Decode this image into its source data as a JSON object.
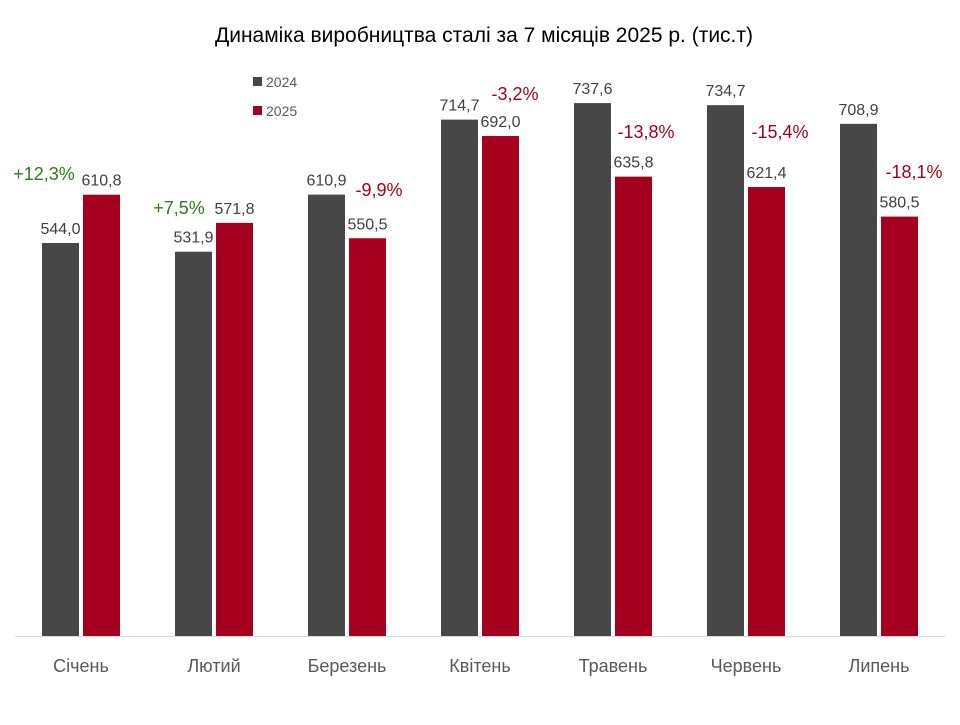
{
  "chart_data": {
    "type": "bar",
    "title": "Динаміка виробництва сталі за 7 місяців 2025 р. (тис.т)",
    "xlabel": "",
    "ylabel": "",
    "ylim": [
      0,
      800
    ],
    "grid": false,
    "legend": "top-left",
    "categories": [
      "Січень",
      "Лютий",
      "Березень",
      "Квітень",
      "Травень",
      "Червень",
      "Липень"
    ],
    "series": [
      {
        "name": "2024",
        "color": "#474748",
        "values": [
          544.0,
          531.9,
          610.9,
          714.7,
          737.6,
          734.7,
          708.9
        ],
        "labels": [
          "544,0",
          "531,9",
          "610,9",
          "714,7",
          "737,6",
          "734,7",
          "708,9"
        ]
      },
      {
        "name": "2025",
        "color": "#A5001E",
        "values": [
          610.8,
          571.8,
          550.5,
          692.0,
          635.8,
          621.4,
          580.5
        ],
        "labels": [
          "610,8",
          "571,8",
          "550,5",
          "692,0",
          "635,8",
          "621,4",
          "580,5"
        ]
      }
    ],
    "change_labels": [
      "+12,3%",
      "+7,5%",
      "-9,9%",
      "-3,2%",
      "-13,8%",
      "-15,4%",
      "-18,1%"
    ],
    "change_colors": {
      "positive": "#2E7D1F",
      "negative": "#A5001E"
    }
  }
}
